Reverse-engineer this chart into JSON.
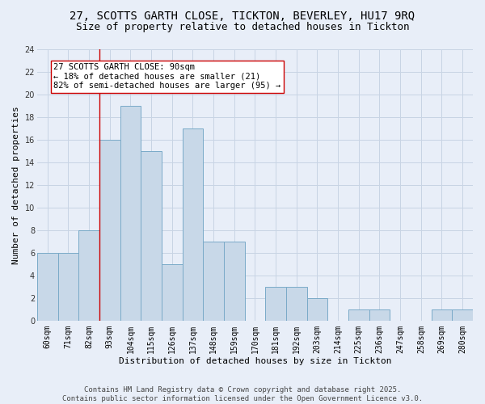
{
  "title1": "27, SCOTTS GARTH CLOSE, TICKTON, BEVERLEY, HU17 9RQ",
  "title2": "Size of property relative to detached houses in Tickton",
  "xlabel": "Distribution of detached houses by size in Tickton",
  "ylabel": "Number of detached properties",
  "categories": [
    "60sqm",
    "71sqm",
    "82sqm",
    "93sqm",
    "104sqm",
    "115sqm",
    "126sqm",
    "137sqm",
    "148sqm",
    "159sqm",
    "170sqm",
    "181sqm",
    "192sqm",
    "203sqm",
    "214sqm",
    "225sqm",
    "236sqm",
    "247sqm",
    "258sqm",
    "269sqm",
    "280sqm"
  ],
  "values": [
    6,
    6,
    8,
    16,
    19,
    15,
    5,
    17,
    7,
    7,
    0,
    3,
    3,
    2,
    0,
    1,
    1,
    0,
    0,
    1,
    1
  ],
  "bar_color": "#c8d8e8",
  "bar_edge_color": "#7aaac8",
  "grid_color": "#c8d4e4",
  "bg_color": "#e8eef8",
  "vline_x": 2.5,
  "vline_color": "#cc0000",
  "annotation_text": "27 SCOTTS GARTH CLOSE: 90sqm\n← 18% of detached houses are smaller (21)\n82% of semi-detached houses are larger (95) →",
  "annotation_box_color": "#ffffff",
  "annotation_box_edge": "#cc0000",
  "ylim": [
    0,
    24
  ],
  "yticks": [
    0,
    2,
    4,
    6,
    8,
    10,
    12,
    14,
    16,
    18,
    20,
    22,
    24
  ],
  "footer": "Contains HM Land Registry data © Crown copyright and database right 2025.\nContains public sector information licensed under the Open Government Licence v3.0.",
  "title_fontsize": 10,
  "subtitle_fontsize": 9,
  "axis_label_fontsize": 8,
  "tick_fontsize": 7,
  "annotation_fontsize": 7.5,
  "footer_fontsize": 6.5
}
